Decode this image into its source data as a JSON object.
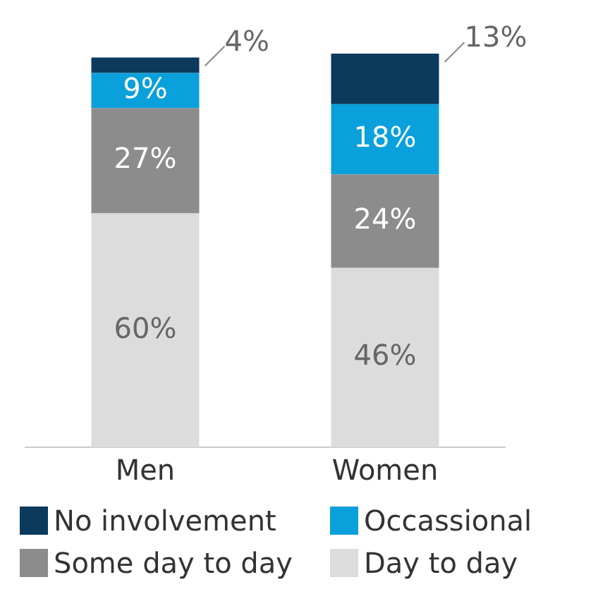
{
  "chart_data": {
    "type": "bar",
    "stacked": true,
    "categories": [
      "Men",
      "Women"
    ],
    "legend": "bottom",
    "grid": false,
    "series": [
      {
        "name": "Day to day",
        "color": "#dcdcdc",
        "values": [
          60,
          46
        ],
        "value_labels": [
          "60%",
          "46%"
        ]
      },
      {
        "name": "Some day to day",
        "color": "#8c8c8c",
        "values": [
          27,
          24
        ],
        "value_labels": [
          "27%",
          "24%"
        ]
      },
      {
        "name": "Occassional",
        "color": "#0aa0dc",
        "values": [
          9,
          18
        ],
        "value_labels": [
          "9%",
          "18%"
        ]
      },
      {
        "name": "No involvement",
        "color": "#0b3a5c",
        "values": [
          4,
          13
        ],
        "value_labels": [
          "4%",
          "13%"
        ]
      }
    ]
  }
}
